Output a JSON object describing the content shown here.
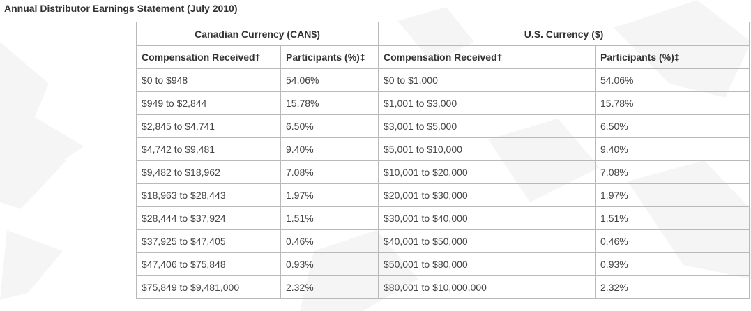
{
  "title": "Annual Distributor Earnings Statement (July 2010)",
  "table": {
    "group_headers": [
      "Canadian Currency (CAN$)",
      "U.S. Currency ($)"
    ],
    "column_headers": [
      "Compensation Received†",
      "Participants (%)‡",
      "Compensation Received†",
      "Participants (%)‡"
    ],
    "rows": [
      [
        "$0 to $948",
        "54.06%",
        "$0 to $1,000",
        "54.06%"
      ],
      [
        "$949 to $2,844",
        "15.78%",
        "$1,001 to $3,000",
        "15.78%"
      ],
      [
        "$2,845 to $4,741",
        "6.50%",
        "$3,001 to $5,000",
        "6.50%"
      ],
      [
        "$4,742 to $9,481",
        "9.40%",
        "$5,001 to $10,000",
        "9.40%"
      ],
      [
        "$9,482 to $18,962",
        "7.08%",
        "$10,001 to $20,000",
        "7.08%"
      ],
      [
        "$18,963 to $28,443",
        "1.97%",
        "$20,001 to $30,000",
        "1.97%"
      ],
      [
        "$28,444 to $37,924",
        "1.51%",
        "$30,001 to $40,000",
        "1.51%"
      ],
      [
        "$37,925 to $47,405",
        "0.46%",
        "$40,001 to $50,000",
        "0.46%"
      ],
      [
        "$47,406 to $75,848",
        "0.93%",
        "$50,001 to $80,000",
        "0.93%"
      ],
      [
        "$75,849 to $9,481,000",
        "2.32%",
        "$80,001 to $10,000,000",
        "2.32%"
      ]
    ]
  },
  "colors": {
    "border": "#b9b9b9",
    "text": "#444444",
    "heading": "#333333",
    "watermark": "#f4f4f4"
  }
}
